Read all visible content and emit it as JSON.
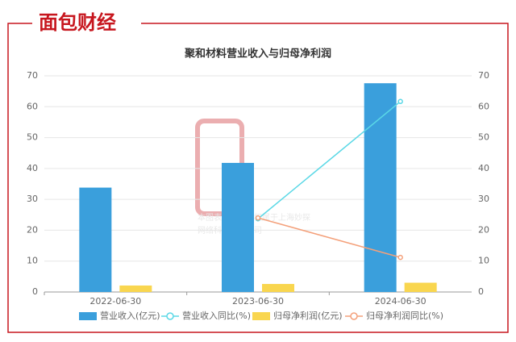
{
  "brand": "面包财经",
  "watermark": [
    "本图表图片著作权属于上海妙探",
    "网络科技有限公司"
  ],
  "chart_data": {
    "type": "bar",
    "title": "聚和材料营业收入与归母净利润",
    "categories": [
      "2022-06-30",
      "2023-06-30",
      "2024-06-30"
    ],
    "series": [
      {
        "name": "营业收入(亿元)",
        "type": "bar",
        "color": "#3a9fdc",
        "values": [
          33.8,
          41.8,
          67.6
        ]
      },
      {
        "name": "营业收入同比(%)",
        "type": "line",
        "axis": "y2",
        "color": "#5ad8e6",
        "values": [
          null,
          23.7,
          61.7
        ]
      },
      {
        "name": "归母净利润(亿元)",
        "type": "bar",
        "color": "#f9d64f",
        "values": [
          2.1,
          2.6,
          3.0
        ]
      },
      {
        "name": "归母净利润同比(%)",
        "type": "line",
        "axis": "y2",
        "color": "#f4a07a",
        "values": [
          null,
          24.0,
          11.2
        ]
      }
    ],
    "ylim": [
      0,
      70
    ],
    "yticks": [
      0,
      10,
      20,
      30,
      40,
      50,
      60,
      70
    ],
    "y2lim": [
      0,
      70
    ],
    "y2ticks": [
      0,
      10,
      20,
      30,
      40,
      50,
      60,
      70
    ],
    "grid": true
  }
}
